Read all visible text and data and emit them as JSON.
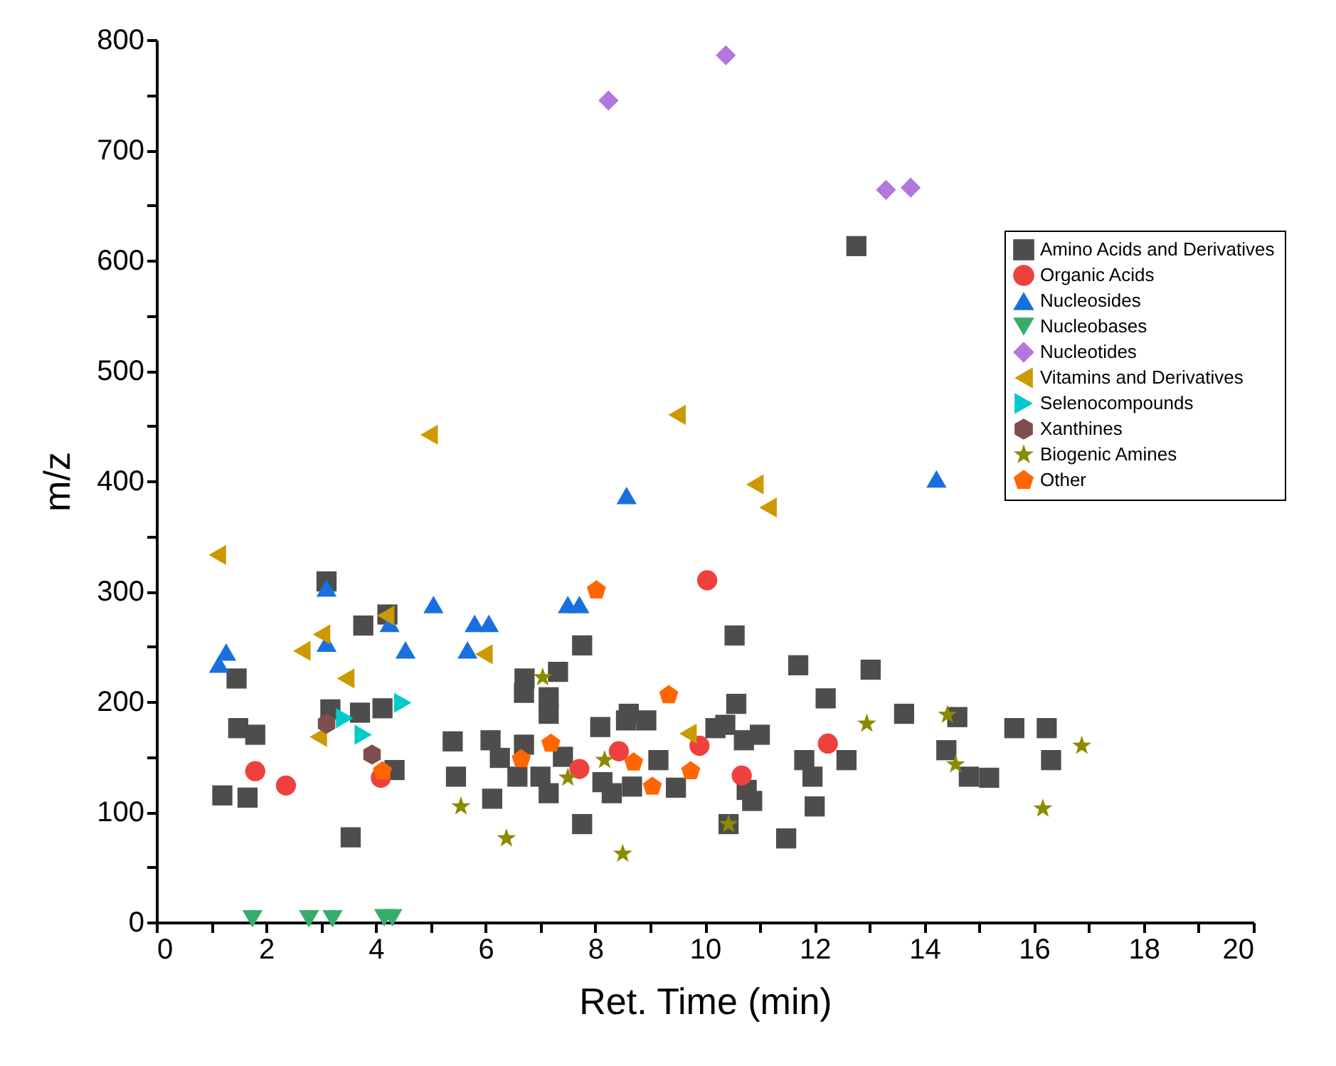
{
  "chart_data": {
    "type": "scatter",
    "xlabel": "Ret. Time (min)",
    "ylabel": "m/z",
    "xlim": [
      0,
      20
    ],
    "ylim": [
      0,
      800
    ],
    "xticks": [
      0,
      {
        "value": 1,
        "label": null
      },
      2,
      {
        "value": 3,
        "label": null
      },
      4,
      {
        "value": 5,
        "label": null
      },
      6,
      {
        "value": 7,
        "label": null
      },
      8,
      {
        "value": 9,
        "label": null
      },
      10,
      {
        "value": 11,
        "label": null
      },
      12,
      {
        "value": 13,
        "label": null
      },
      14,
      {
        "value": 15,
        "label": null
      },
      16,
      {
        "value": 17,
        "label": null
      },
      18,
      {
        "value": 19,
        "label": null
      },
      20
    ],
    "yticks": [
      0,
      {
        "value": 50,
        "label": null
      },
      100,
      {
        "value": 150,
        "label": null
      },
      200,
      {
        "value": 250,
        "label": null
      },
      300,
      {
        "value": 350,
        "label": null
      },
      400,
      {
        "value": 450,
        "label": null
      },
      500,
      {
        "value": 550,
        "label": null
      },
      600,
      {
        "value": 650,
        "label": null
      },
      700,
      {
        "value": 750,
        "label": null
      },
      800
    ],
    "grid": false,
    "legend": "top right",
    "series": [
      {
        "name": "Amino Acids and Derivatives",
        "color": "#4d4d4d",
        "marker": "square",
        "x": [
          1.46,
          1.49,
          1.8,
          1.2,
          1.66,
          3.1,
          3.77,
          4.21,
          3.17,
          3.71,
          4.12,
          3.54,
          4.34,
          5.4,
          5.46,
          7.76,
          10.54,
          6.71,
          7.32,
          6.7,
          7.15,
          7.15,
          6.09,
          6.26,
          6.7,
          7.41,
          6.12,
          6.58,
          7.0,
          7.15,
          7.76,
          8.09,
          8.61,
          8.56,
          8.93,
          8.13,
          8.3,
          8.67,
          9.15,
          9.47,
          10.19,
          10.37,
          10.57,
          10.71,
          11.0,
          10.76,
          10.86,
          10.43,
          11.7,
          13.02,
          12.2,
          13.63,
          11.81,
          11.96,
          12.58,
          12.0,
          11.48,
          14.6,
          14.4,
          14.81,
          15.18,
          15.64,
          16.23,
          16.31,
          12.76
        ],
        "values": [
          221,
          176,
          170,
          115,
          113,
          309,
          269,
          279,
          193,
          190,
          194,
          77,
          138,
          164,
          132,
          251,
          260,
          221,
          227,
          208,
          204,
          189,
          165,
          149,
          161,
          150,
          112,
          132,
          132,
          117,
          89,
          177,
          189,
          183,
          183,
          127,
          117,
          123,
          147,
          122,
          176,
          179,
          198,
          165,
          170,
          120,
          110,
          89,
          233,
          229,
          203,
          189,
          147,
          132,
          147,
          105,
          76,
          186,
          156,
          132,
          131,
          176,
          176,
          147,
          613
        ]
      },
      {
        "name": "Organic Acids",
        "color": "#ef4040",
        "marker": "circle",
        "x": [
          1.8,
          2.36,
          4.09,
          10.04,
          7.71,
          8.43,
          9.9,
          10.67,
          12.24
        ],
        "values": [
          137,
          124,
          131,
          310,
          139,
          155,
          160,
          133,
          162
        ]
      },
      {
        "name": "Nucleosides",
        "color": "#1a6fdf",
        "marker": "triangle",
        "x": [
          1.27,
          1.14,
          3.1,
          3.1,
          4.25,
          4.54,
          5.05,
          5.8,
          6.06,
          5.67,
          7.5,
          7.71,
          8.57,
          14.22
        ],
        "values": [
          245,
          234,
          303,
          253,
          271,
          247,
          288,
          271,
          271,
          247,
          288,
          288,
          387,
          402
        ]
      },
      {
        "name": "Nucleobases",
        "color": "#37ad6b",
        "marker": "triangle-down",
        "x": [
          1.75,
          2.78,
          3.21,
          4.15,
          4.3
        ],
        "values": [
          3,
          3,
          3,
          4,
          4
        ]
      },
      {
        "name": "Nucleotides",
        "color": "#b177de",
        "marker": "diamond",
        "x": [
          8.24,
          10.38,
          13.3,
          13.75
        ],
        "values": [
          745,
          786,
          664,
          666
        ]
      },
      {
        "name": "Vitamins and Derivatives",
        "color": "#cc9900",
        "marker": "triangle-left",
        "x": [
          1.11,
          3.01,
          2.65,
          3.45,
          4.18,
          2.95,
          5.97,
          9.69,
          4.97,
          9.49,
          10.91,
          11.15
        ],
        "values": [
          333,
          261,
          246,
          221,
          278,
          168,
          243,
          171,
          442,
          460,
          397,
          376
        ]
      },
      {
        "name": "Selenocompounds",
        "color": "#00cbcc",
        "marker": "triangle-right",
        "x": [
          3.43,
          3.77,
          4.49
        ],
        "values": [
          185,
          170,
          199
        ]
      },
      {
        "name": "Xanthines",
        "color": "#7d4e4e",
        "x": [
          3.1,
          3.93
        ],
        "values": [
          180,
          152
        ]
      },
      {
        "name": "Biogenic Amines",
        "color": "#8b8b00",
        "marker": "star",
        "x": [
          5.55,
          7.04,
          6.38,
          7.5,
          8.17,
          8.5,
          10.43,
          12.95,
          14.42,
          14.57,
          16.16,
          16.87
        ],
        "values": [
          105,
          222,
          76,
          131,
          147,
          62,
          89,
          180,
          188,
          143,
          103,
          160
        ]
      },
      {
        "name": "Other",
        "color": "#ff6600",
        "x": [
          4.12,
          8.02,
          9.34,
          7.19,
          6.65,
          8.7,
          9.04,
          9.74
        ],
        "values": [
          137,
          301,
          206,
          162,
          148,
          145,
          123,
          137
        ]
      }
    ]
  }
}
